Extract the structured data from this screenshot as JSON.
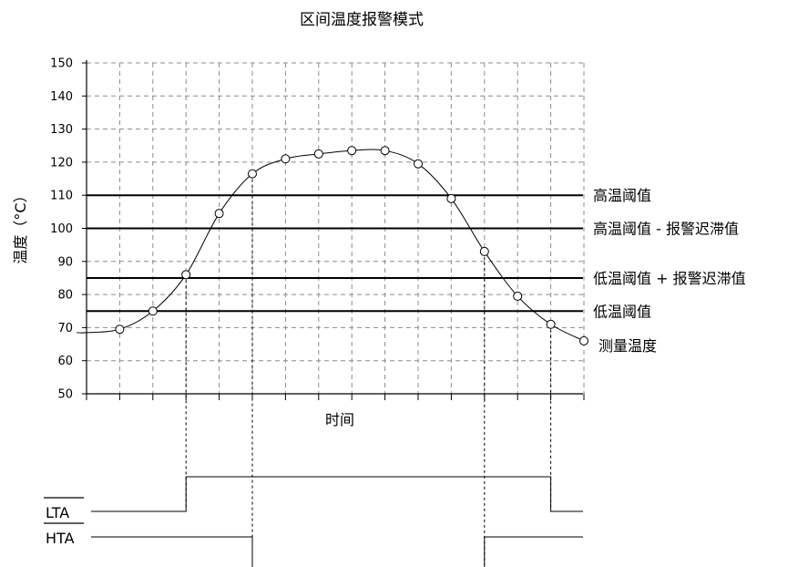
{
  "chart_data": {
    "type": "line",
    "title": "区间温度报警模式",
    "xlabel": "时间",
    "ylabel": "温度（°C）",
    "ylim": [
      50,
      150
    ],
    "y_ticks": [
      "50",
      "60",
      "70",
      "80",
      "90",
      "100",
      "110",
      "120",
      "130",
      "140",
      "150"
    ],
    "grid": true,
    "series": [
      {
        "name": "测量温度",
        "x": [
          1,
          2,
          3,
          4,
          5,
          6,
          7,
          8,
          9,
          10,
          11,
          12,
          13,
          14,
          15
        ],
        "values": [
          69.5,
          75,
          86,
          104.5,
          116.5,
          121,
          122.5,
          123.5,
          123.5,
          119.5,
          109,
          93,
          79.5,
          71,
          66
        ]
      }
    ],
    "thresholds": [
      {
        "label": "高温阈值",
        "value": 110
      },
      {
        "label": "高温阈值 - 报警迟滞值",
        "value": 100
      },
      {
        "label": "低温阈值 + 报警迟滞值",
        "value": 85
      },
      {
        "label": "低温阈值",
        "value": 75
      }
    ]
  },
  "signals": {
    "lta": "LTA",
    "hta": "HTA"
  }
}
